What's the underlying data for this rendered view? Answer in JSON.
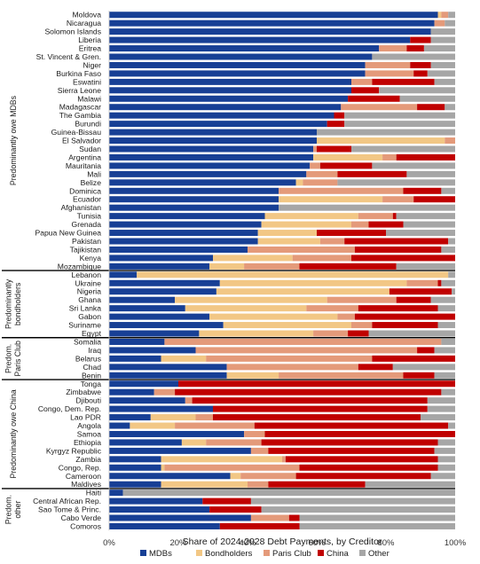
{
  "chart_data": {
    "type": "bar",
    "orientation": "horizontal",
    "stacked": "percent",
    "xlabel": "Share of 2024-2028 Debt Payments, by Creditor",
    "xlim": [
      0,
      100
    ],
    "xticks": [
      "0%",
      "20%",
      "40%",
      "60%",
      "80%",
      "100%"
    ],
    "grid": false,
    "legend_position": "bottom",
    "series_names": [
      "MDBs",
      "Bondholders",
      "Paris Club",
      "China",
      "Other"
    ],
    "colors": {
      "MDBs": "#173f95",
      "Bondholders": "#f2c785",
      "Paris Club": "#e49a7a",
      "China": "#c00000",
      "Other": "#a6a6a6"
    },
    "groups": [
      {
        "label": [
          "Predominantly owe MDBs"
        ],
        "rows": [
          {
            "name": "Moldova",
            "values": [
              95,
              1,
              2,
              0,
              2
            ]
          },
          {
            "name": "Nicaragua",
            "values": [
              94,
              0,
              3,
              0,
              3
            ]
          },
          {
            "name": "Solomon Islands",
            "values": [
              93,
              0,
              0,
              0,
              7
            ]
          },
          {
            "name": "Liberia",
            "values": [
              87,
              0,
              0,
              6,
              7
            ]
          },
          {
            "name": "Eritrea",
            "values": [
              78,
              0,
              8,
              5,
              9
            ]
          },
          {
            "name": "St. Vincent & Gren.",
            "values": [
              76,
              0,
              0,
              0,
              24
            ]
          },
          {
            "name": "Niger",
            "values": [
              74,
              0,
              13,
              6,
              7
            ]
          },
          {
            "name": "Burkina Faso",
            "values": [
              74,
              0,
              14,
              4,
              8
            ]
          },
          {
            "name": "Eswatini",
            "values": [
              70,
              0,
              6,
              18,
              6
            ]
          },
          {
            "name": "Sierra Leone",
            "values": [
              70,
              0,
              0,
              8,
              22
            ]
          },
          {
            "name": "Malawi",
            "values": [
              69,
              0,
              0,
              15,
              16
            ]
          },
          {
            "name": "Madagascar",
            "values": [
              67,
              0,
              22,
              8,
              3
            ]
          },
          {
            "name": "The Gambia",
            "values": [
              65,
              0,
              0,
              3,
              32
            ]
          },
          {
            "name": "Burundi",
            "values": [
              63,
              0,
              0,
              5,
              32
            ]
          },
          {
            "name": "Guinea-Bissau",
            "values": [
              60,
              0,
              0,
              0,
              40
            ]
          },
          {
            "name": "El Salvador",
            "values": [
              60,
              37,
              3,
              0,
              0
            ]
          },
          {
            "name": "Sudan",
            "values": [
              59,
              0,
              1,
              10,
              30
            ]
          },
          {
            "name": "Argentina",
            "values": [
              59,
              20,
              4,
              17,
              0
            ]
          },
          {
            "name": "Mauritania",
            "values": [
              58,
              0,
              3,
              15,
              24
            ]
          },
          {
            "name": "Mali",
            "values": [
              57,
              0,
              9,
              20,
              14
            ]
          },
          {
            "name": "Belize",
            "values": [
              54,
              2,
              10,
              0,
              34
            ]
          },
          {
            "name": "Dominica",
            "values": [
              49,
              0,
              36,
              11,
              4
            ]
          },
          {
            "name": "Ecuador",
            "values": [
              49,
              30,
              9,
              12,
              0
            ]
          },
          {
            "name": "Afghanistan",
            "values": [
              49,
              0,
              0,
              0,
              51
            ]
          },
          {
            "name": "Tunisia",
            "values": [
              45,
              27,
              10,
              1,
              17
            ]
          },
          {
            "name": "Grenada",
            "values": [
              44,
              26,
              5,
              10,
              15
            ]
          },
          {
            "name": "Papua New Guinea",
            "values": [
              43,
              17,
              0,
              20,
              20
            ]
          },
          {
            "name": "Pakistan",
            "values": [
              43,
              18,
              7,
              30,
              2
            ]
          },
          {
            "name": "Tajikistan",
            "values": [
              40,
              0,
              31,
              25,
              4
            ]
          },
          {
            "name": "Kenya",
            "values": [
              30,
              23,
              17,
              30,
              0
            ]
          },
          {
            "name": "Mozambique",
            "values": [
              29,
              10,
              16,
              28,
              17
            ]
          }
        ]
      },
      {
        "label": [
          "Predominantly",
          "bondholders"
        ],
        "rows": [
          {
            "name": "Lebanon",
            "values": [
              8,
              90,
              0,
              0,
              2
            ]
          },
          {
            "name": "Ukraine",
            "values": [
              32,
              54,
              9,
              1,
              4
            ]
          },
          {
            "name": "Nigeria",
            "values": [
              31,
              50,
              0,
              18,
              1
            ]
          },
          {
            "name": "Ghana",
            "values": [
              19,
              44,
              20,
              10,
              7
            ]
          },
          {
            "name": "Sri Lanka",
            "values": [
              22,
              35,
              15,
              23,
              5
            ]
          },
          {
            "name": "Gabon",
            "values": [
              29,
              37,
              5,
              29,
              0
            ]
          },
          {
            "name": "Suriname",
            "values": [
              33,
              37,
              6,
              19,
              5
            ]
          },
          {
            "name": "Egypt",
            "values": [
              26,
              33,
              10,
              6,
              25
            ]
          }
        ]
      },
      {
        "label": [
          "Predom.",
          "Paris Club"
        ],
        "rows": [
          {
            "name": "Somalia",
            "values": [
              16,
              0,
              80,
              0,
              4
            ]
          },
          {
            "name": "Iraq",
            "values": [
              25,
              0,
              64,
              5,
              6
            ]
          },
          {
            "name": "Belarus",
            "values": [
              15,
              13,
              48,
              24,
              0
            ]
          },
          {
            "name": "Chad",
            "values": [
              34,
              0,
              38,
              10,
              18
            ]
          },
          {
            "name": "Benin",
            "values": [
              34,
              15,
              36,
              9,
              6
            ]
          }
        ]
      },
      {
        "label": [
          "Predominantly owe China"
        ],
        "rows": [
          {
            "name": "Tonga",
            "values": [
              20,
              0,
              0,
              80,
              0
            ]
          },
          {
            "name": "Zimbabwe",
            "values": [
              13,
              0,
              6,
              77,
              4
            ]
          },
          {
            "name": "Djibouti",
            "values": [
              22,
              0,
              2,
              68,
              8
            ]
          },
          {
            "name": "Congo, Dem. Rep.",
            "values": [
              30,
              0,
              0,
              62,
              8
            ]
          },
          {
            "name": "Lao PDR",
            "values": [
              12,
              13,
              5,
              60,
              10
            ]
          },
          {
            "name": "Angola",
            "values": [
              6,
              13,
              23,
              56,
              2
            ]
          },
          {
            "name": "Samoa",
            "values": [
              39,
              0,
              6,
              55,
              0
            ]
          },
          {
            "name": "Ethiopia",
            "values": [
              21,
              7,
              16,
              51,
              5
            ]
          },
          {
            "name": "Kyrgyz Republic",
            "values": [
              41,
              0,
              5,
              48,
              6
            ]
          },
          {
            "name": "Zambia",
            "values": [
              15,
              35,
              1,
              44,
              5
            ]
          },
          {
            "name": "Congo, Rep.",
            "values": [
              15,
              1,
              39,
              40,
              5
            ]
          },
          {
            "name": "Cameroon",
            "values": [
              35,
              3,
              16,
              39,
              7
            ]
          },
          {
            "name": "Maldives",
            "values": [
              15,
              25,
              6,
              28,
              26
            ]
          }
        ]
      },
      {
        "label": [
          "Predom.",
          "other"
        ],
        "rows": [
          {
            "name": "Haiti",
            "values": [
              4,
              0,
              0,
              0,
              96
            ]
          },
          {
            "name": "Central African Rep.",
            "values": [
              27,
              0,
              0,
              14,
              59
            ]
          },
          {
            "name": "Sao Tome & Princ.",
            "values": [
              29,
              0,
              0,
              15,
              56
            ]
          },
          {
            "name": "Cabo Verde",
            "values": [
              41,
              0,
              11,
              3,
              45
            ]
          },
          {
            "name": "Comoros",
            "values": [
              32,
              0,
              0,
              23,
              45
            ]
          }
        ]
      }
    ]
  }
}
